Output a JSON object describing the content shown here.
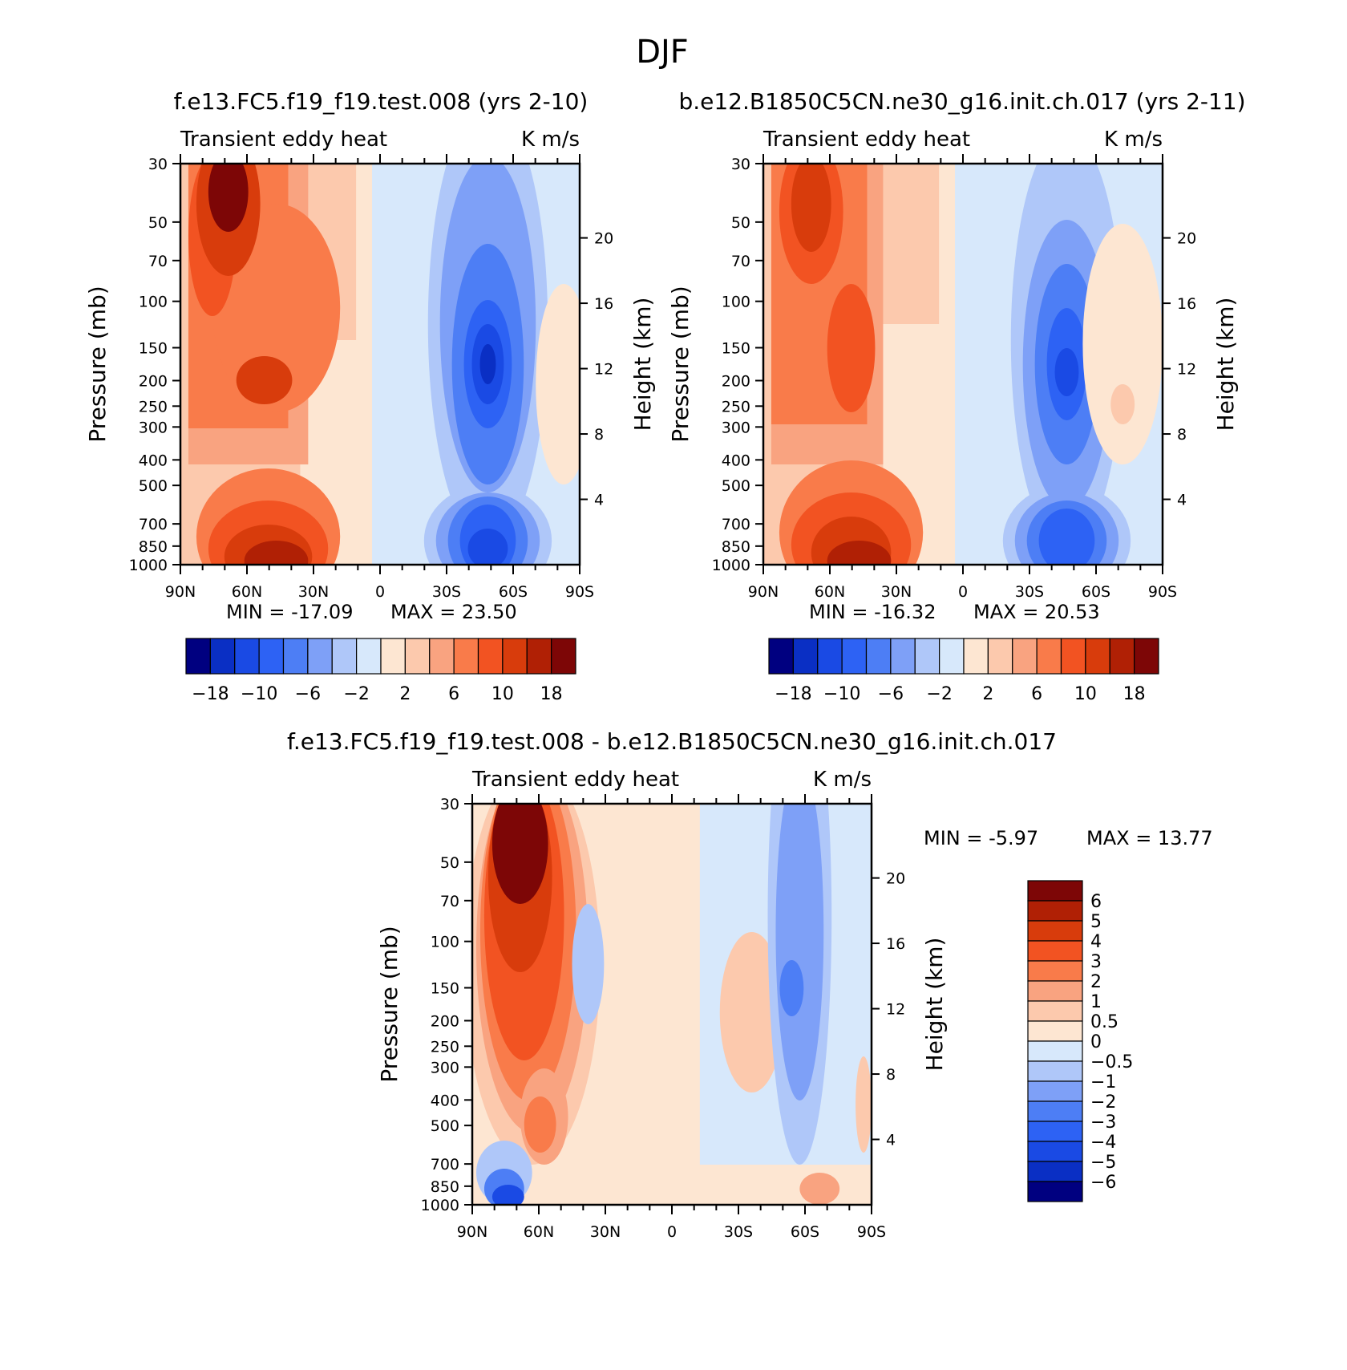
{
  "figure": {
    "title": "DJF"
  },
  "levels": {
    "main": [
      -18,
      -14,
      -10,
      -8,
      -6,
      -4,
      -2,
      0,
      2,
      4,
      6,
      8,
      10,
      14,
      18
    ],
    "diff": [
      -6,
      -5,
      -4,
      -3,
      -2,
      -1,
      -0.5,
      0,
      0.5,
      1,
      2,
      3,
      4,
      5,
      6
    ]
  },
  "colors": [
    "#000080",
    "#0a2fc4",
    "#1a4ae4",
    "#2d62f4",
    "#4d7ef5",
    "#7ea0f7",
    "#afc7f9",
    "#d7e8fb",
    "#fde6d2",
    "#fcc9ad",
    "#f9a380",
    "#f97b4a",
    "#f25322",
    "#d83c0c",
    "#b02005",
    "#7d0606"
  ],
  "axes": {
    "pressure_ticks": [
      "30",
      "50",
      "70",
      "100",
      "150",
      "200",
      "250",
      "300",
      "400",
      "500",
      "700",
      "850",
      "1000"
    ],
    "height_ticks": [
      "20",
      "16",
      "12",
      "8",
      "4"
    ],
    "lat_ticks": [
      "90N",
      "60N",
      "30N",
      "0",
      "30S",
      "60S",
      "90S"
    ],
    "ylabel": "Pressure (mb)",
    "ylabel_right": "Height (km)"
  },
  "chart_data": [
    {
      "type": "heatmap",
      "subtype": "filled-contour",
      "title": "f.e13.FC5.f19_f19.test.008 (yrs 2-10)",
      "inner_left": "Transient eddy heat",
      "inner_right": "K m/s",
      "x": [
        "90N",
        "60N",
        "30N",
        "0",
        "30S",
        "60S",
        "90S"
      ],
      "xlim": [
        90,
        -90
      ],
      "ylim": [
        1000,
        30
      ],
      "ylabel": "Pressure (mb)",
      "ylabel_right": "Height (km)",
      "min_text": "MIN =  -17.09",
      "max_text": "MAX =   23.50",
      "min": -17.09,
      "max": 23.5,
      "colorbar_labels": [
        "-18",
        "-10",
        "-6",
        "-2",
        "2",
        "6",
        "10",
        "18"
      ],
      "features": [
        {
          "lat": 68,
          "p": 38,
          "value": 22
        },
        {
          "lat": 50,
          "p": 780,
          "value": 17
        },
        {
          "lat": 45,
          "p": 200,
          "value": 11
        },
        {
          "lat": -50,
          "p": 170,
          "value": -17
        },
        {
          "lat": -50,
          "p": 820,
          "value": -16
        }
      ]
    },
    {
      "type": "heatmap",
      "subtype": "filled-contour",
      "title": "b.e12.B1850C5CN.ne30_g16.init.ch.017 (yrs 2-11)",
      "inner_left": "Transient eddy heat",
      "inner_right": "K m/s",
      "x": [
        "90N",
        "60N",
        "30N",
        "0",
        "30S",
        "60S",
        "90S"
      ],
      "xlim": [
        90,
        -90
      ],
      "ylim": [
        1000,
        30
      ],
      "ylabel": "Pressure (mb)",
      "ylabel_right": "Height (km)",
      "min_text": "MIN =  -16.32",
      "max_text": "MAX =   20.53",
      "min": -16.32,
      "max": 20.53,
      "colorbar_labels": [
        "-18",
        "-10",
        "-6",
        "-2",
        "2",
        "6",
        "10",
        "18"
      ],
      "features": [
        {
          "lat": 68,
          "p": 38,
          "value": 13
        },
        {
          "lat": 55,
          "p": 800,
          "value": 18
        },
        {
          "lat": 40,
          "p": 200,
          "value": 9
        },
        {
          "lat": -50,
          "p": 200,
          "value": -16
        },
        {
          "lat": -50,
          "p": 820,
          "value": -16
        }
      ]
    },
    {
      "type": "heatmap",
      "subtype": "filled-contour",
      "title": "f.e13.FC5.f19_f19.test.008 - b.e12.B1850C5CN.ne30_g16.init.ch.017",
      "inner_left": "Transient eddy heat",
      "inner_right": "K m/s",
      "x": [
        "90N",
        "60N",
        "30N",
        "0",
        "30S",
        "60S",
        "90S"
      ],
      "xlim": [
        90,
        -90
      ],
      "ylim": [
        1000,
        30
      ],
      "ylabel": "Pressure (mb)",
      "ylabel_right": "Height (km)",
      "min_text": "MIN =   -5.97",
      "max_text": "MAX =   13.77",
      "min": -5.97,
      "max": 13.77,
      "colorbar_labels": [
        "6",
        "5",
        "4",
        "3",
        "2",
        "1",
        "0.5",
        "0",
        "-0.5",
        "-1",
        "-2",
        "-3",
        "-4",
        "-5",
        "-6"
      ],
      "features": [
        {
          "lat": 75,
          "p": 40,
          "value": 13
        },
        {
          "lat": 60,
          "p": 200,
          "value": 3
        },
        {
          "lat": 65,
          "p": 650,
          "value": 2
        },
        {
          "lat": 75,
          "p": 950,
          "value": -5
        },
        {
          "lat": -50,
          "p": 130,
          "value": -3.5
        },
        {
          "lat": -60,
          "p": 950,
          "value": 2
        }
      ]
    }
  ]
}
